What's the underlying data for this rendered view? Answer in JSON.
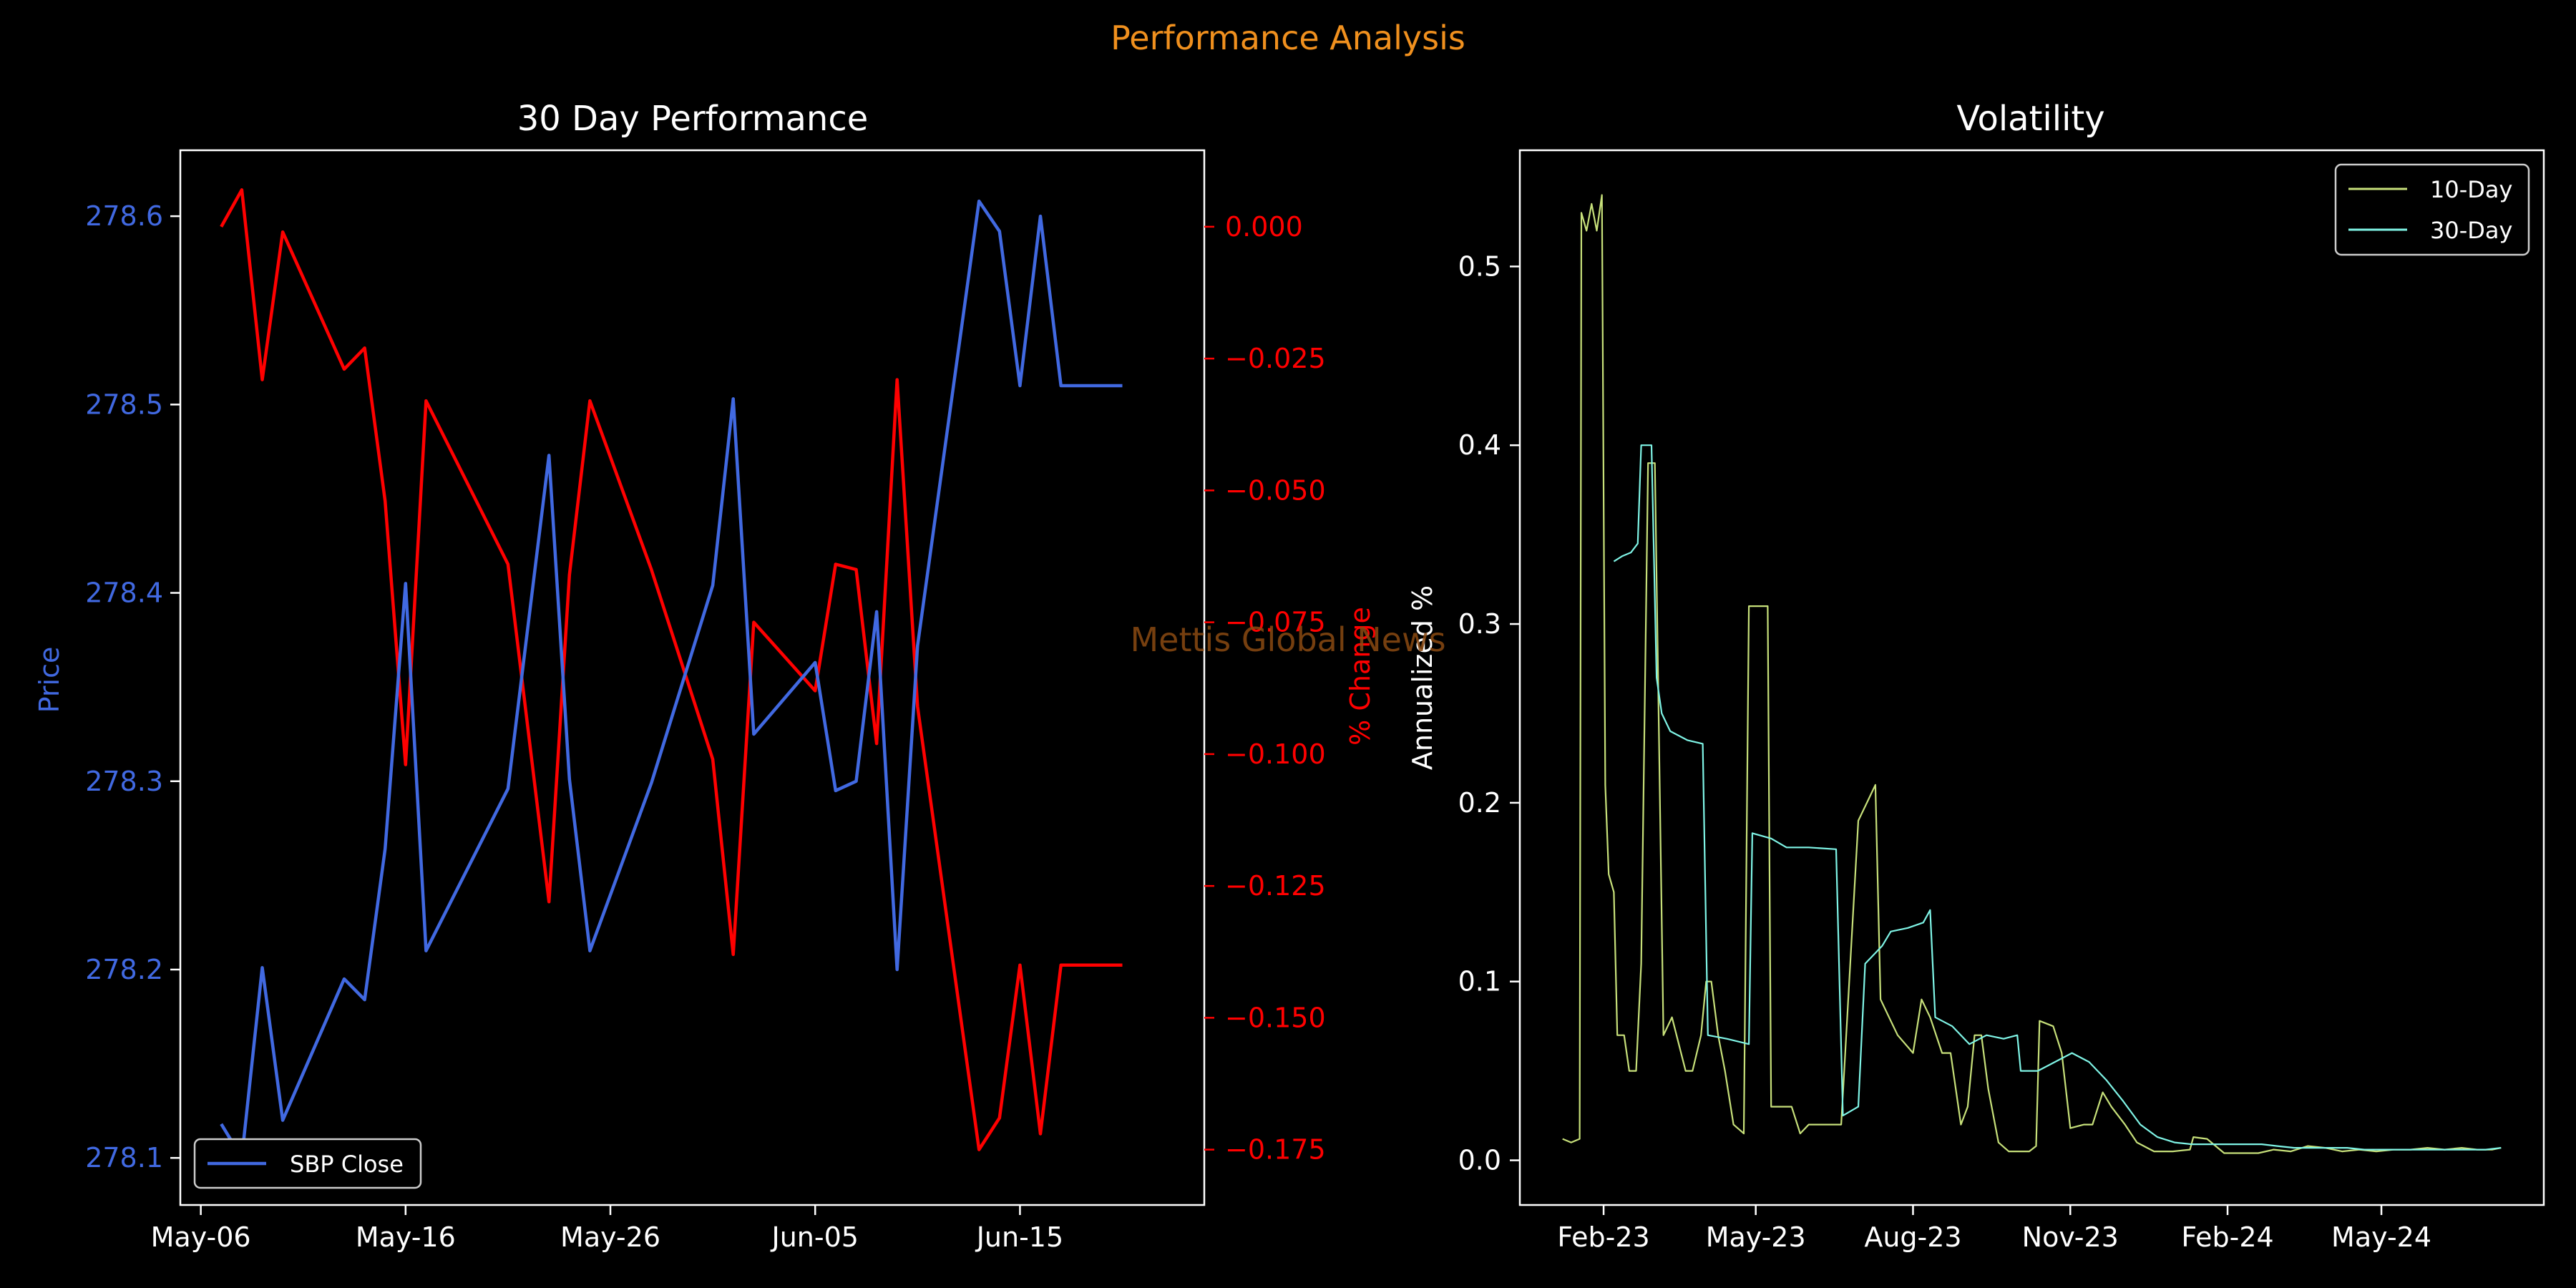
{
  "suptitle": "Performance Analysis",
  "watermark": "Mettis Global News",
  "colors": {
    "background": "#000000",
    "suptitle": "#f0901e",
    "price": "#4169e1",
    "pct": "#ff0000",
    "vol10": "#c7e07a",
    "vol30": "#7ff4e6",
    "axes": "#ffffff",
    "watermark": "#8b4a12"
  },
  "chart_data": [
    {
      "type": "line",
      "title": "30 Day Performance",
      "xlabel": "",
      "ylabel": "Price",
      "y2label": "% Change",
      "x_ticks": [
        "May-06",
        "May-16",
        "May-26",
        "Jun-05",
        "Jun-15"
      ],
      "xlim": [
        "2024-05-05",
        "2024-06-24"
      ],
      "ylim": [
        278.075,
        278.635
      ],
      "y2lim": [
        -0.1855,
        0.0145
      ],
      "y_ticks": [
        "278.1",
        "278.2",
        "278.3",
        "278.4",
        "278.5",
        "278.6"
      ],
      "y2_ticks": [
        "0.000",
        "−0.025",
        "−0.050",
        "−0.075",
        "−0.100",
        "−0.125",
        "−0.150",
        "−0.175"
      ],
      "legend": {
        "position": "lower-left",
        "entries": [
          "SBP Close"
        ]
      },
      "series": [
        {
          "name": "SBP Close",
          "axis": "left",
          "x": [
            "2024-05-07",
            "2024-05-08",
            "2024-05-09",
            "2024-05-10",
            "2024-05-13",
            "2024-05-14",
            "2024-05-15",
            "2024-05-16",
            "2024-05-17",
            "2024-05-21",
            "2024-05-23",
            "2024-05-24",
            "2024-05-25",
            "2024-05-28",
            "2024-05-31",
            "2024-06-01",
            "2024-06-02",
            "2024-06-05",
            "2024-06-06",
            "2024-06-07",
            "2024-06-08",
            "2024-06-09",
            "2024-06-10",
            "2024-06-13",
            "2024-06-14",
            "2024-06-15",
            "2024-06-16",
            "2024-06-17",
            "2024-06-18",
            "2024-06-19",
            "2024-06-20"
          ],
          "values": [
            278.118,
            278.1,
            278.201,
            278.12,
            278.195,
            278.184,
            278.264,
            278.405,
            278.21,
            278.296,
            278.473,
            278.301,
            278.21,
            278.299,
            278.404,
            278.503,
            278.325,
            278.363,
            278.295,
            278.3,
            278.39,
            278.2,
            278.372,
            278.608,
            278.592,
            278.51,
            278.6,
            278.51,
            278.51,
            278.51,
            278.51
          ]
        },
        {
          "name": "",
          "axis": "right",
          "x": [
            "2024-05-07",
            "2024-05-08",
            "2024-05-09",
            "2024-05-10",
            "2024-05-13",
            "2024-05-14",
            "2024-05-15",
            "2024-05-16",
            "2024-05-17",
            "2024-05-21",
            "2024-05-23",
            "2024-05-24",
            "2024-05-25",
            "2024-05-28",
            "2024-05-31",
            "2024-06-01",
            "2024-06-02",
            "2024-06-05",
            "2024-06-06",
            "2024-06-07",
            "2024-06-08",
            "2024-06-09",
            "2024-06-10",
            "2024-06-13",
            "2024-06-14",
            "2024-06-15",
            "2024-06-16",
            "2024-06-17",
            "2024-06-18",
            "2024-06-19",
            "2024-06-20"
          ],
          "values": [
            0.0,
            0.007,
            -0.029,
            -0.001,
            -0.027,
            -0.023,
            -0.052,
            -0.102,
            -0.033,
            -0.064,
            -0.128,
            -0.066,
            -0.033,
            -0.065,
            -0.101,
            -0.138,
            -0.075,
            -0.088,
            -0.064,
            -0.065,
            -0.098,
            -0.029,
            -0.091,
            -0.175,
            -0.169,
            -0.14,
            -0.172,
            -0.14,
            -0.14,
            -0.14,
            -0.14
          ]
        }
      ]
    },
    {
      "type": "line",
      "title": "Volatility",
      "xlabel": "",
      "ylabel": "Annualized %",
      "x_ticks": [
        "Feb-23",
        "May-23",
        "Aug-23",
        "Nov-23",
        "Feb-24",
        "May-24"
      ],
      "xlim": [
        "2022-12-14",
        "2024-08-04"
      ],
      "ylim": [
        -0.025,
        0.565
      ],
      "y_ticks": [
        "0.0",
        "0.1",
        "0.2",
        "0.3",
        "0.4",
        "0.5"
      ],
      "grid": false,
      "legend": {
        "position": "top-right",
        "entries": [
          "10-Day",
          "30-Day"
        ]
      },
      "series": [
        {
          "name": "10-Day",
          "points": [
            [
              "2023-01-08",
              0.012
            ],
            [
              "2023-01-13",
              0.01
            ],
            [
              "2023-01-18",
              0.012
            ],
            [
              "2023-01-19",
              0.53
            ],
            [
              "2023-01-22",
              0.52
            ],
            [
              "2023-01-25",
              0.535
            ],
            [
              "2023-01-28",
              0.52
            ],
            [
              "2023-01-31",
              0.54
            ],
            [
              "2023-02-02",
              0.21
            ],
            [
              "2023-02-04",
              0.16
            ],
            [
              "2023-02-07",
              0.15
            ],
            [
              "2023-02-09",
              0.07
            ],
            [
              "2023-02-13",
              0.07
            ],
            [
              "2023-02-16",
              0.05
            ],
            [
              "2023-02-20",
              0.05
            ],
            [
              "2023-02-23",
              0.11
            ],
            [
              "2023-02-27",
              0.39
            ],
            [
              "2023-03-03",
              0.39
            ],
            [
              "2023-03-08",
              0.07
            ],
            [
              "2023-03-13",
              0.08
            ],
            [
              "2023-03-21",
              0.05
            ],
            [
              "2023-03-25",
              0.05
            ],
            [
              "2023-03-30",
              0.07
            ],
            [
              "2023-04-02",
              0.1
            ],
            [
              "2023-04-05",
              0.1
            ],
            [
              "2023-04-09",
              0.07
            ],
            [
              "2023-04-13",
              0.05
            ],
            [
              "2023-04-18",
              0.02
            ],
            [
              "2023-04-24",
              0.015
            ],
            [
              "2023-04-27",
              0.31
            ],
            [
              "2023-05-08",
              0.31
            ],
            [
              "2023-05-10",
              0.03
            ],
            [
              "2023-05-22",
              0.03
            ],
            [
              "2023-05-27",
              0.015
            ],
            [
              "2023-06-01",
              0.02
            ],
            [
              "2023-06-10",
              0.02
            ],
            [
              "2023-06-20",
              0.02
            ],
            [
              "2023-06-30",
              0.19
            ],
            [
              "2023-07-05",
              0.2
            ],
            [
              "2023-07-10",
              0.21
            ],
            [
              "2023-07-13",
              0.09
            ],
            [
              "2023-07-18",
              0.08
            ],
            [
              "2023-07-23",
              0.07
            ],
            [
              "2023-08-01",
              0.06
            ],
            [
              "2023-08-06",
              0.09
            ],
            [
              "2023-08-11",
              0.08
            ],
            [
              "2023-08-18",
              0.06
            ],
            [
              "2023-08-23",
              0.06
            ],
            [
              "2023-08-29",
              0.02
            ],
            [
              "2023-09-02",
              0.03
            ],
            [
              "2023-09-06",
              0.07
            ],
            [
              "2023-09-10",
              0.07
            ],
            [
              "2023-09-14",
              0.04
            ],
            [
              "2023-09-20",
              0.01
            ],
            [
              "2023-09-26",
              0.005
            ],
            [
              "2023-10-02",
              0.005
            ],
            [
              "2023-10-08",
              0.005
            ],
            [
              "2023-10-12",
              0.008
            ],
            [
              "2023-10-14",
              0.078
            ],
            [
              "2023-10-22",
              0.075
            ],
            [
              "2023-10-27",
              0.06
            ],
            [
              "2023-11-01",
              0.018
            ],
            [
              "2023-11-09",
              0.02
            ],
            [
              "2023-11-14",
              0.02
            ],
            [
              "2023-11-20",
              0.038
            ],
            [
              "2023-11-25",
              0.03
            ],
            [
              "2023-12-03",
              0.02
            ],
            [
              "2023-12-10",
              0.01
            ],
            [
              "2023-12-20",
              0.005
            ],
            [
              "2023-12-31",
              0.005
            ],
            [
              "2024-01-10",
              0.006
            ],
            [
              "2024-01-12",
              0.013
            ],
            [
              "2024-01-20",
              0.012
            ],
            [
              "2024-01-30",
              0.004
            ],
            [
              "2024-02-09",
              0.004
            ],
            [
              "2024-02-19",
              0.004
            ],
            [
              "2024-02-28",
              0.006
            ],
            [
              "2024-03-09",
              0.005
            ],
            [
              "2024-03-19",
              0.008
            ],
            [
              "2024-03-29",
              0.007
            ],
            [
              "2024-04-08",
              0.005
            ],
            [
              "2024-04-18",
              0.006
            ],
            [
              "2024-04-28",
              0.005
            ],
            [
              "2024-05-08",
              0.006
            ],
            [
              "2024-05-18",
              0.006
            ],
            [
              "2024-05-28",
              0.007
            ],
            [
              "2024-06-07",
              0.006
            ],
            [
              "2024-06-17",
              0.007
            ],
            [
              "2024-06-26",
              0.006
            ],
            [
              "2024-07-05",
              0.006
            ],
            [
              "2024-07-10",
              0.007
            ]
          ]
        },
        {
          "name": "30-Day",
          "points": [
            [
              "2023-02-07",
              0.335
            ],
            [
              "2023-02-12",
              0.338
            ],
            [
              "2023-02-17",
              0.34
            ],
            [
              "2023-02-21",
              0.345
            ],
            [
              "2023-02-23",
              0.4
            ],
            [
              "2023-03-01",
              0.4
            ],
            [
              "2023-03-04",
              0.27
            ],
            [
              "2023-03-07",
              0.25
            ],
            [
              "2023-03-12",
              0.24
            ],
            [
              "2023-03-22",
              0.235
            ],
            [
              "2023-03-31",
              0.233
            ],
            [
              "2023-04-03",
              0.07
            ],
            [
              "2023-04-14",
              0.068
            ],
            [
              "2023-04-27",
              0.065
            ],
            [
              "2023-04-29",
              0.183
            ],
            [
              "2023-05-10",
              0.18
            ],
            [
              "2023-05-19",
              0.175
            ],
            [
              "2023-06-01",
              0.175
            ],
            [
              "2023-06-17",
              0.174
            ],
            [
              "2023-06-21",
              0.025
            ],
            [
              "2023-06-30",
              0.03
            ],
            [
              "2023-07-04",
              0.11
            ],
            [
              "2023-07-14",
              0.12
            ],
            [
              "2023-07-19",
              0.128
            ],
            [
              "2023-07-29",
              0.13
            ],
            [
              "2023-08-07",
              0.133
            ],
            [
              "2023-08-11",
              0.14
            ],
            [
              "2023-08-14",
              0.08
            ],
            [
              "2023-08-24",
              0.075
            ],
            [
              "2023-09-03",
              0.065
            ],
            [
              "2023-09-13",
              0.07
            ],
            [
              "2023-09-23",
              0.068
            ],
            [
              "2023-10-01",
              0.07
            ],
            [
              "2023-10-03",
              0.05
            ],
            [
              "2023-10-13",
              0.05
            ],
            [
              "2023-10-23",
              0.055
            ],
            [
              "2023-11-02",
              0.06
            ],
            [
              "2023-11-12",
              0.055
            ],
            [
              "2023-11-22",
              0.045
            ],
            [
              "2023-12-02",
              0.033
            ],
            [
              "2023-12-12",
              0.02
            ],
            [
              "2023-12-22",
              0.013
            ],
            [
              "2024-01-01",
              0.01
            ],
            [
              "2024-01-11",
              0.009
            ],
            [
              "2024-01-21",
              0.009
            ],
            [
              "2024-02-01",
              0.009
            ],
            [
              "2024-02-11",
              0.009
            ],
            [
              "2024-02-21",
              0.009
            ],
            [
              "2024-03-01",
              0.008
            ],
            [
              "2024-03-11",
              0.007
            ],
            [
              "2024-03-21",
              0.007
            ],
            [
              "2024-04-01",
              0.007
            ],
            [
              "2024-04-11",
              0.007
            ],
            [
              "2024-04-21",
              0.006
            ],
            [
              "2024-05-01",
              0.006
            ],
            [
              "2024-05-11",
              0.006
            ],
            [
              "2024-05-21",
              0.006
            ],
            [
              "2024-06-01",
              0.006
            ],
            [
              "2024-06-11",
              0.006
            ],
            [
              "2024-06-21",
              0.006
            ],
            [
              "2024-07-01",
              0.006
            ],
            [
              "2024-07-10",
              0.007
            ]
          ]
        }
      ]
    }
  ]
}
